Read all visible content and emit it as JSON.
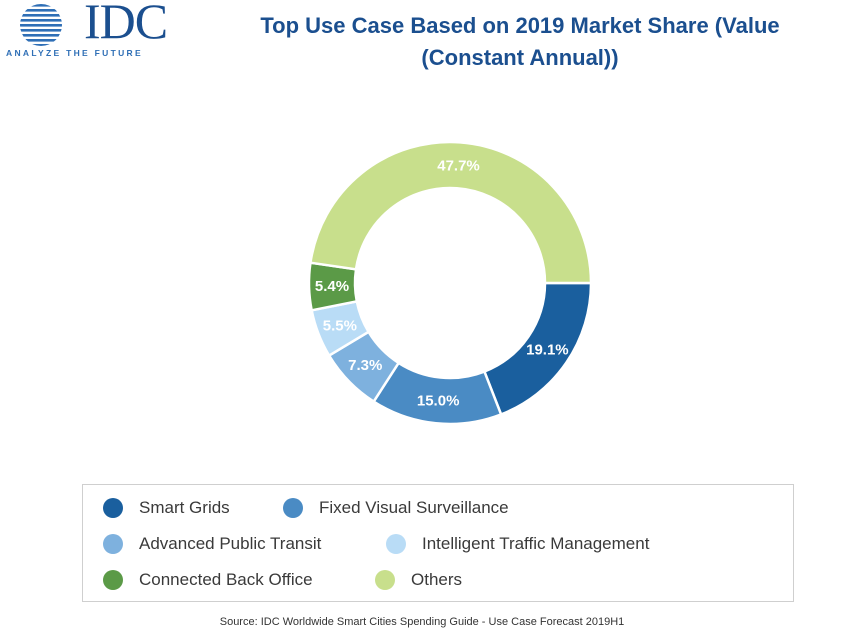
{
  "logo": {
    "brand": "IDC",
    "tagline": "ANALYZE THE FUTURE",
    "color": "#1b4f8f"
  },
  "title": {
    "line1": "Top Use Case Based on 2019 Market Share (Value",
    "line2": "(Constant Annual))"
  },
  "chart_data": {
    "type": "pie",
    "variant": "donut",
    "title": "Top Use Case Based on 2019 Market Share (Value (Constant Annual))",
    "series": [
      {
        "name": "Smart Grids",
        "value": 19.1,
        "label": "19.1%",
        "color": "#1a5f9e"
      },
      {
        "name": "Fixed Visual Surveillance",
        "value": 15.0,
        "label": "15.0%",
        "color": "#4a8bc4"
      },
      {
        "name": "Advanced Public Transit",
        "value": 7.3,
        "label": "7.3%",
        "color": "#7eb1de"
      },
      {
        "name": "Intelligent Traffic Management",
        "value": 5.5,
        "label": "5.5%",
        "color": "#b9dcf6"
      },
      {
        "name": "Connected Back Office",
        "value": 5.4,
        "label": "5.4%",
        "color": "#5b9a47"
      },
      {
        "name": "Others",
        "value": 47.7,
        "label": "47.7%",
        "color": "#c8df8c"
      }
    ],
    "legend_position": "bottom",
    "start": "3 o'clock",
    "direction": "clockwise"
  },
  "source": "Source: IDC Worldwide Smart Cities Spending Guide - Use Case Forecast 2019H1"
}
